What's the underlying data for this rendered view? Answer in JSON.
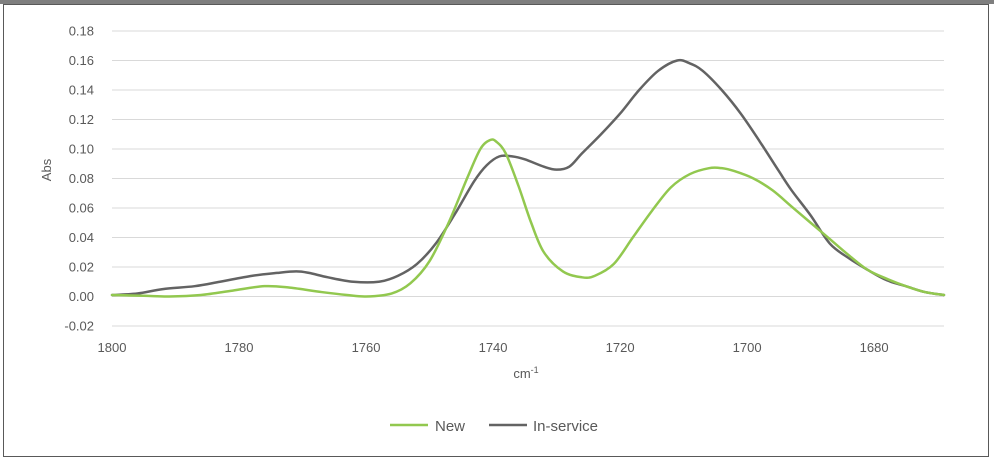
{
  "chart_data": {
    "type": "line",
    "title": "",
    "xlabel": "cm",
    "xlabel_superscript": "-1",
    "ylabel": "Abs",
    "xlim": [
      1800,
      1669
    ],
    "ylim": [
      -0.02,
      0.18
    ],
    "x_reversed": true,
    "x_ticks": [
      "1800",
      "1780",
      "1760",
      "1740",
      "1720",
      "1700",
      "1680"
    ],
    "y_ticks": [
      "-0.02",
      "0.00",
      "0.02",
      "0.04",
      "0.06",
      "0.08",
      "0.10",
      "0.12",
      "0.14",
      "0.16",
      "0.18"
    ],
    "grid": "horizontal",
    "legend_position": "bottom",
    "series": [
      {
        "name": "New",
        "color": "#92c84f",
        "points": [
          [
            1800,
            0.001
          ],
          [
            1795,
            0.0005
          ],
          [
            1791,
            0.0
          ],
          [
            1786,
            0.001
          ],
          [
            1781,
            0.004
          ],
          [
            1776,
            0.007
          ],
          [
            1772,
            0.006
          ],
          [
            1767,
            0.003
          ],
          [
            1763,
            0.001
          ],
          [
            1760,
            0.0
          ],
          [
            1756,
            0.002
          ],
          [
            1753,
            0.009
          ],
          [
            1750,
            0.024
          ],
          [
            1747,
            0.05
          ],
          [
            1744,
            0.081
          ],
          [
            1742,
            0.1
          ],
          [
            1740.5,
            0.106
          ],
          [
            1739.5,
            0.105
          ],
          [
            1738,
            0.097
          ],
          [
            1736,
            0.075
          ],
          [
            1734,
            0.05
          ],
          [
            1732,
            0.03
          ],
          [
            1729,
            0.017
          ],
          [
            1726,
            0.013
          ],
          [
            1724,
            0.014
          ],
          [
            1721,
            0.022
          ],
          [
            1718,
            0.04
          ],
          [
            1715,
            0.058
          ],
          [
            1712,
            0.074
          ],
          [
            1709,
            0.083
          ],
          [
            1706,
            0.087
          ],
          [
            1704,
            0.087
          ],
          [
            1702,
            0.085
          ],
          [
            1699,
            0.08
          ],
          [
            1696,
            0.072
          ],
          [
            1693,
            0.061
          ],
          [
            1690,
            0.05
          ],
          [
            1687,
            0.039
          ],
          [
            1684,
            0.028
          ],
          [
            1681,
            0.018
          ],
          [
            1678,
            0.012
          ],
          [
            1675,
            0.007
          ],
          [
            1672,
            0.003
          ],
          [
            1669,
            0.001
          ]
        ]
      },
      {
        "name": "In-service",
        "color": "#636363",
        "points": [
          [
            1800,
            0.001
          ],
          [
            1796,
            0.002
          ],
          [
            1792,
            0.005
          ],
          [
            1787,
            0.007
          ],
          [
            1783,
            0.01
          ],
          [
            1778,
            0.014
          ],
          [
            1774,
            0.016
          ],
          [
            1771,
            0.017
          ],
          [
            1769,
            0.016
          ],
          [
            1766,
            0.013
          ],
          [
            1762,
            0.01
          ],
          [
            1758,
            0.01
          ],
          [
            1755,
            0.014
          ],
          [
            1752,
            0.022
          ],
          [
            1749,
            0.036
          ],
          [
            1746,
            0.056
          ],
          [
            1743,
            0.078
          ],
          [
            1741,
            0.089
          ],
          [
            1739,
            0.095
          ],
          [
            1737,
            0.095
          ],
          [
            1735,
            0.093
          ],
          [
            1732,
            0.088
          ],
          [
            1730,
            0.086
          ],
          [
            1728,
            0.088
          ],
          [
            1726,
            0.097
          ],
          [
            1723,
            0.11
          ],
          [
            1720,
            0.124
          ],
          [
            1717,
            0.14
          ],
          [
            1714,
            0.153
          ],
          [
            1711,
            0.16
          ],
          [
            1709,
            0.158
          ],
          [
            1707,
            0.153
          ],
          [
            1704,
            0.14
          ],
          [
            1701,
            0.124
          ],
          [
            1698,
            0.105
          ],
          [
            1695,
            0.085
          ],
          [
            1693,
            0.072
          ],
          [
            1690,
            0.055
          ],
          [
            1687,
            0.036
          ],
          [
            1684,
            0.026
          ],
          [
            1681,
            0.018
          ],
          [
            1678,
            0.011
          ],
          [
            1675,
            0.007
          ],
          [
            1672,
            0.003
          ],
          [
            1669,
            0.001
          ]
        ]
      }
    ]
  }
}
